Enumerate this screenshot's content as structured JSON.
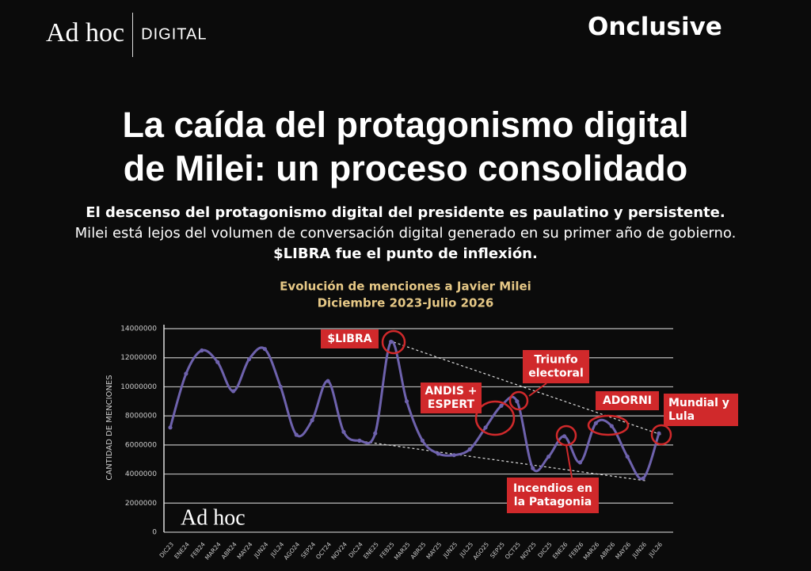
{
  "header": {
    "brand": "Ad hoc",
    "brand_suffix": "DIGITAL",
    "partner": "Onclusive"
  },
  "headline": {
    "title_lines": [
      "La caída del protagonismo digital",
      "de Milei: un proceso consolidado"
    ],
    "subtitle": [
      {
        "text": "El descenso del protagonismo digital del presidente es paulatino y persistente.",
        "bold": true
      },
      {
        "text": "Milei está lejos del volumen de conversación digital generado en su primer año de gobierno.",
        "bold": false
      },
      {
        "text": "$LIBRA fue el punto de inflexión.",
        "bold": true
      }
    ]
  },
  "chart_data": {
    "type": "line",
    "title_lines": [
      "Evolución de menciones a Javier Milei",
      "Diciembre 2023-Julio 2026"
    ],
    "y_label": "CANTIDAD DE MENCIONES",
    "watermark": "Ad hoc",
    "categories": [
      "DIC23",
      "ENE24",
      "FEB24",
      "MAR24",
      "ABR24",
      "MAY24",
      "JUN24",
      "JUL24",
      "AGO24",
      "SEP24",
      "OCT24",
      "NOV24",
      "DIC24",
      "ENE25",
      "FEB25",
      "MAR25",
      "ABR25",
      "MAY25",
      "JUN25",
      "JUL25",
      "AGO25",
      "SEP25",
      "OCT25",
      "NOV25",
      "DIC25",
      "ENE26",
      "FEB26",
      "MAR26",
      "ABR26",
      "MAY26",
      "JUN26",
      "JUL26"
    ],
    "values": [
      7200000,
      10900000,
      12500000,
      11700000,
      9700000,
      11900000,
      12600000,
      10000000,
      6700000,
      7700000,
      10400000,
      6900000,
      6300000,
      6800000,
      13100000,
      9000000,
      6300000,
      5400000,
      5300000,
      5700000,
      7200000,
      8700000,
      9000000,
      4400000,
      5200000,
      6600000,
      4800000,
      7500000,
      7300000,
      5200000,
      3700000,
      6800000
    ],
    "color": "#6e62ad",
    "ylim": [
      0,
      14000000
    ],
    "yticks": [
      0,
      2000000,
      4000000,
      6000000,
      8000000,
      10000000,
      12000000,
      14000000
    ],
    "grid": true,
    "annotations": [
      {
        "lines": [
          "$LIBRA"
        ]
      },
      {
        "lines": [
          "ANDIS +",
          "ESPERT"
        ]
      },
      {
        "lines": [
          "Triunfo",
          "electoral"
        ]
      },
      {
        "lines": [
          "ADORNI"
        ]
      },
      {
        "lines": [
          "Mundial y",
          "Lula"
        ]
      },
      {
        "lines": [
          "Incendios en",
          "la Patagonia"
        ]
      }
    ]
  }
}
